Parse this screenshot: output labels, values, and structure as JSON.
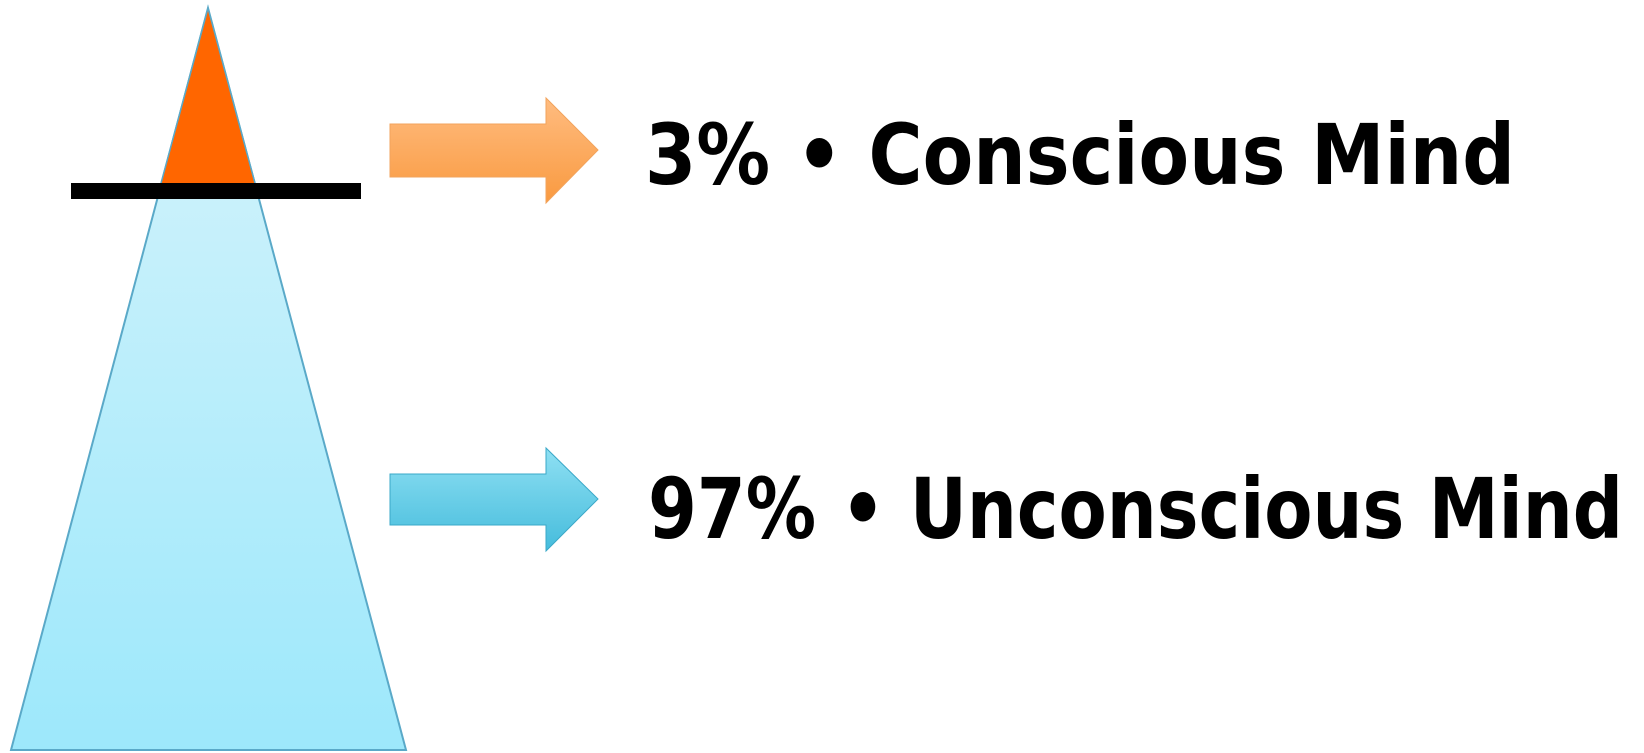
{
  "labels": [
    {
      "text": "3% • Conscious Mind"
    },
    {
      "text": "97% • Unconscious Mind"
    }
  ]
}
